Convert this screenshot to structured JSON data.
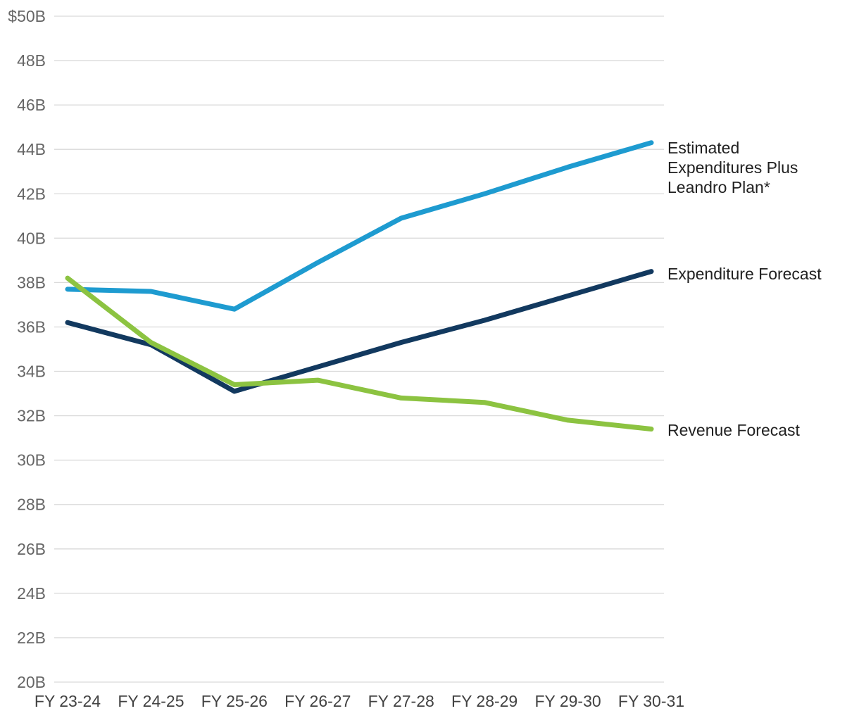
{
  "chart_data": {
    "type": "line",
    "categories": [
      "FY 23-24",
      "FY 24-25",
      "FY 25-26",
      "FY 26-27",
      "FY 27-28",
      "FY 28-29",
      "FY 29-30",
      "FY 30-31"
    ],
    "series": [
      {
        "name": "Estimated Expenditures Plus Leandro Plan*",
        "label_lines": [
          "Estimated",
          "Expenditures Plus",
          "Leandro Plan*"
        ],
        "color": "#1E9BD0",
        "values": [
          37.7,
          37.6,
          36.8,
          38.9,
          40.9,
          42.0,
          43.2,
          44.3
        ]
      },
      {
        "name": "Expenditure Forecast",
        "label_lines": [
          "Expenditure Forecast"
        ],
        "color": "#12395F",
        "values": [
          36.2,
          35.2,
          33.1,
          34.2,
          35.3,
          36.3,
          37.4,
          38.5
        ]
      },
      {
        "name": "Revenue Forecast",
        "label_lines": [
          "Revenue Forecast"
        ],
        "color": "#8CC341",
        "values": [
          38.2,
          35.3,
          33.4,
          33.6,
          32.8,
          32.6,
          31.8,
          31.4
        ]
      }
    ],
    "title": "",
    "xlabel": "",
    "ylabel": "",
    "ylim": [
      20,
      50
    ],
    "y_tick_step": 2,
    "y_tick_labels": [
      "$50B",
      "48B",
      "46B",
      "44B",
      "42B",
      "40B",
      "38B",
      "36B",
      "34B",
      "32B",
      "30B",
      "28B",
      "26B",
      "24B",
      "22B",
      "20B"
    ],
    "grid": true,
    "legend_position": "inline-right-of-lines"
  },
  "colors": {
    "background": "#FFFFFF",
    "gridline": "#DADADA",
    "y_axis_text": "#666666",
    "x_axis_text": "#424242",
    "annotation_text": "#212121"
  }
}
